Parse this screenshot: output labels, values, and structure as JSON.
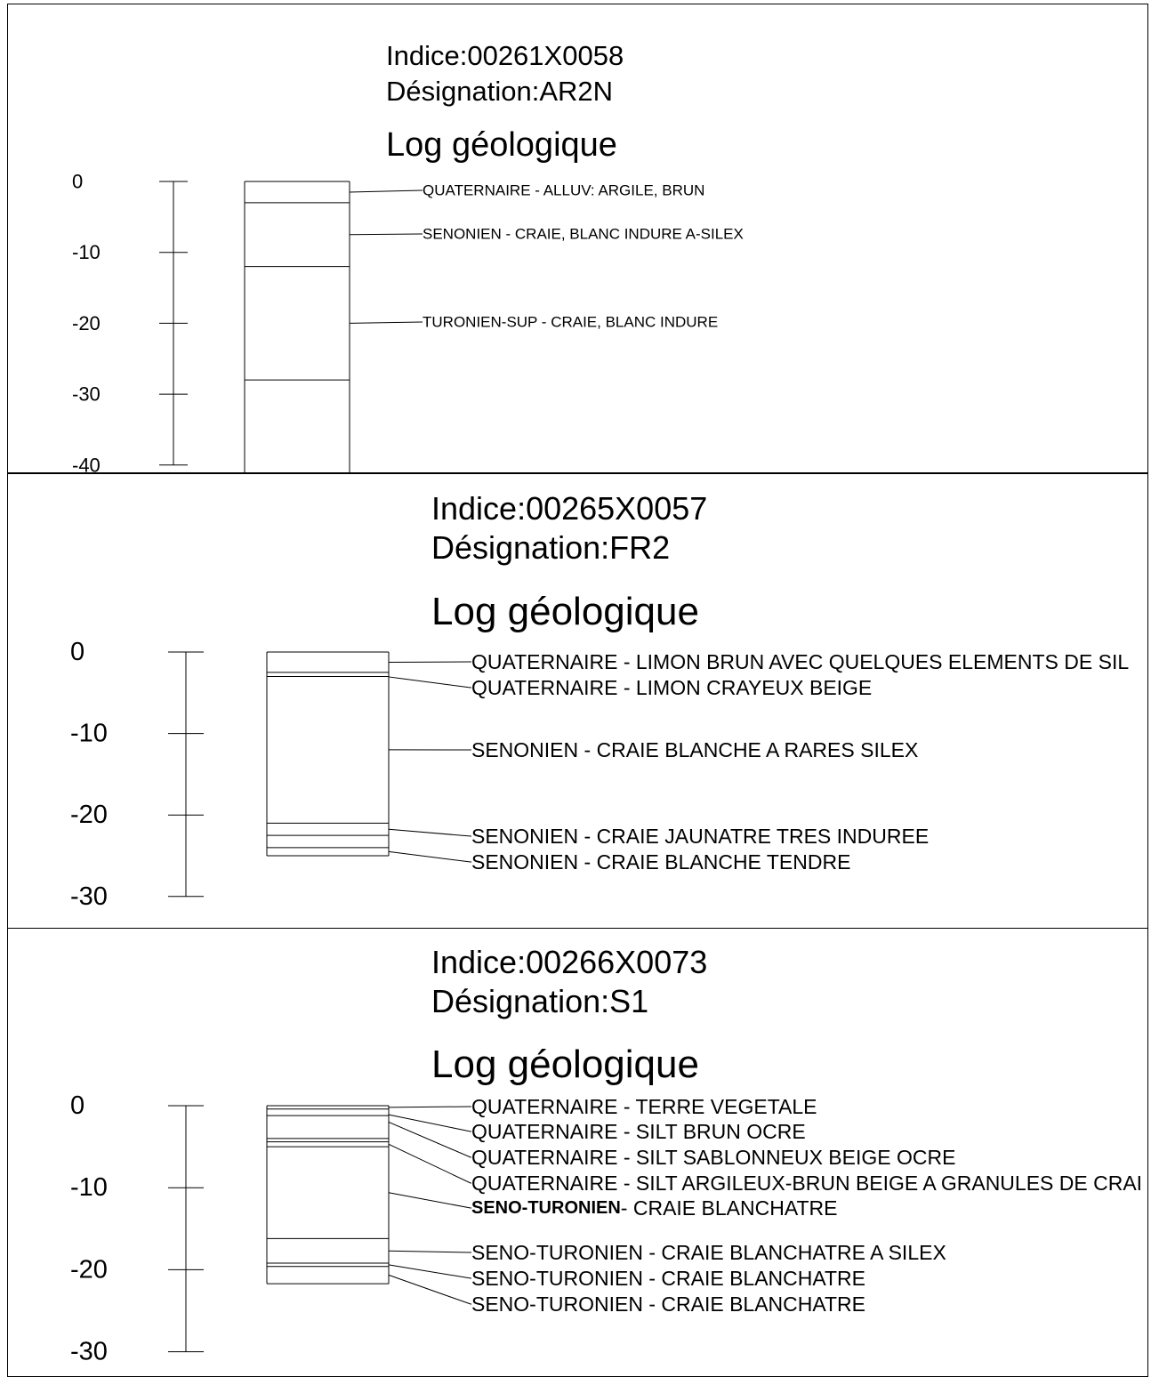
{
  "logs": [
    {
      "indice": "Indice:00261X0058",
      "designation": "Désignation:AR2N",
      "heading": "Log géologique",
      "scale": {
        "min": -40,
        "max": 0,
        "step": 10,
        "labels": [
          "0",
          "-10",
          "-20",
          "-30",
          "-40"
        ]
      },
      "layer_boundaries_m": [
        0,
        -3,
        -12,
        -28
      ],
      "column_continues_below": true,
      "layers": [
        {
          "text": "QUATERNAIRE - ALLUV: ARGILE, BRUN"
        },
        {
          "text": "SENONIEN - CRAIE, BLANC INDURE A-SILEX"
        },
        {
          "text": "TURONIEN-SUP - CRAIE, BLANC INDURE"
        }
      ]
    },
    {
      "indice": "Indice:00265X0057",
      "designation": "Désignation:FR2",
      "heading": "Log géologique",
      "scale": {
        "min": -30,
        "max": 0,
        "step": 10,
        "labels": [
          "0",
          "-10",
          "-20",
          "-30"
        ]
      },
      "layer_boundaries_m": [
        0,
        -2.5,
        -3,
        -21,
        -22.5,
        -24,
        -25
      ],
      "layers": [
        {
          "text": "QUATERNAIRE - LIMON BRUN AVEC QUELQUES ELEMENTS DE SIL"
        },
        {
          "text": "QUATERNAIRE - LIMON CRAYEUX BEIGE"
        },
        {
          "text": "SENONIEN - CRAIE BLANCHE A RARES SILEX"
        },
        {
          "text": "SENONIEN - CRAIE JAUNATRE TRES INDUREE"
        },
        {
          "text": "SENONIEN - CRAIE BLANCHE TENDRE"
        }
      ]
    },
    {
      "indice": "Indice:00266X0073",
      "designation": "Désignation:S1",
      "heading": "Log géologique",
      "scale": {
        "min": -30,
        "max": 0,
        "step": 10,
        "labels": [
          "0",
          "-10",
          "-20",
          "-30"
        ]
      },
      "layer_boundaries_m": [
        0,
        -0.4,
        -1.2,
        -4,
        -4.4,
        -5,
        -16.2,
        -19.2,
        -19.6,
        -21.7
      ],
      "layers": [
        {
          "text": "QUATERNAIRE - TERRE VEGETALE"
        },
        {
          "text": "QUATERNAIRE - SILT BRUN OCRE"
        },
        {
          "text": "QUATERNAIRE - SILT SABLONNEUX BEIGE OCRE"
        },
        {
          "text": "QUATERNAIRE - SILT ARGILEUX-BRUN BEIGE A GRANULES DE CRAI"
        },
        {
          "bold_prefix": "SENO-TURONIEN",
          "text": "- CRAIE BLANCHATRE"
        },
        {
          "text": "SENO-TURONIEN - CRAIE BLANCHATRE A SILEX"
        },
        {
          "text": "SENO-TURONIEN - CRAIE BLANCHATRE"
        },
        {
          "text": "SENO-TURONIEN - CRAIE BLANCHATRE"
        }
      ]
    }
  ]
}
